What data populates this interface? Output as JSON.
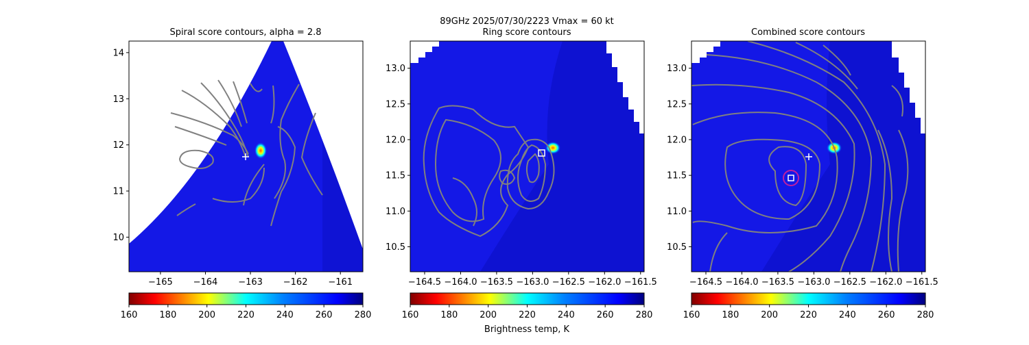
{
  "figure": {
    "suptitle_line1": "89GHz  2025/07/30/2223    Vmax = 60 kt",
    "colorbar_label": "Brightness temp, K"
  },
  "colors": {
    "colormap": "jet (reversed)",
    "contour": "#808080",
    "marker": "#ffffff",
    "circle": "#c020a0"
  },
  "chart_data": [
    {
      "type": "heatmap",
      "title": "Spiral score contours, alpha =  2.8",
      "xlim": [
        -165.7,
        -160.5
      ],
      "ylim": [
        9.25,
        14.25
      ],
      "xticks": [
        -165,
        -164,
        -163,
        -162,
        -161
      ],
      "yticks": [
        10,
        11,
        12,
        13,
        14
      ],
      "colorbar": {
        "min": 160,
        "max": 280,
        "ticks": [
          160,
          180,
          200,
          220,
          240,
          260,
          280
        ]
      },
      "background_tb_k": 265,
      "cold_spot": {
        "lon": -162.8,
        "lat": 11.87,
        "min_tb_k": 180
      },
      "plus_marker": {
        "lon": -163.0,
        "lat": 11.75
      }
    },
    {
      "type": "heatmap",
      "title": "Ring score contours",
      "xlim": [
        -164.7,
        -161.45
      ],
      "ylim": [
        10.15,
        13.38
      ],
      "xticks": [
        -164.5,
        -164.0,
        -163.5,
        -163.0,
        -162.5,
        -162.0,
        -161.5
      ],
      "yticks": [
        10.5,
        11.0,
        11.5,
        12.0,
        12.5,
        13.0
      ],
      "colorbar": {
        "min": 160,
        "max": 280,
        "ticks": [
          160,
          180,
          200,
          220,
          240,
          260,
          280
        ]
      },
      "background_tb_k": 262,
      "cold_spot": {
        "lon": -162.63,
        "lat": 11.87,
        "min_tb_k": 210
      },
      "square_marker": {
        "lon": -162.88,
        "lat": 11.8
      }
    },
    {
      "type": "heatmap",
      "title": "Combined score contours",
      "xlim": [
        -164.7,
        -161.45
      ],
      "ylim": [
        10.15,
        13.38
      ],
      "xticks": [
        -164.5,
        -164.0,
        -163.5,
        -163.0,
        -162.5,
        -162.0,
        -161.5
      ],
      "yticks": [
        10.5,
        11.0,
        11.5,
        12.0,
        12.5,
        13.0
      ],
      "colorbar": {
        "min": 160,
        "max": 280,
        "ticks": [
          160,
          180,
          200,
          220,
          240,
          260,
          280
        ]
      },
      "background_tb_k": 262,
      "cold_spot": {
        "lon": -162.7,
        "lat": 11.87,
        "min_tb_k": 190
      },
      "plus_marker": {
        "lon": -163.0,
        "lat": 11.75
      },
      "square_marker": {
        "lon": -163.33,
        "lat": 11.45
      },
      "circle_marker": {
        "lon": -163.33,
        "lat": 11.45
      }
    }
  ]
}
